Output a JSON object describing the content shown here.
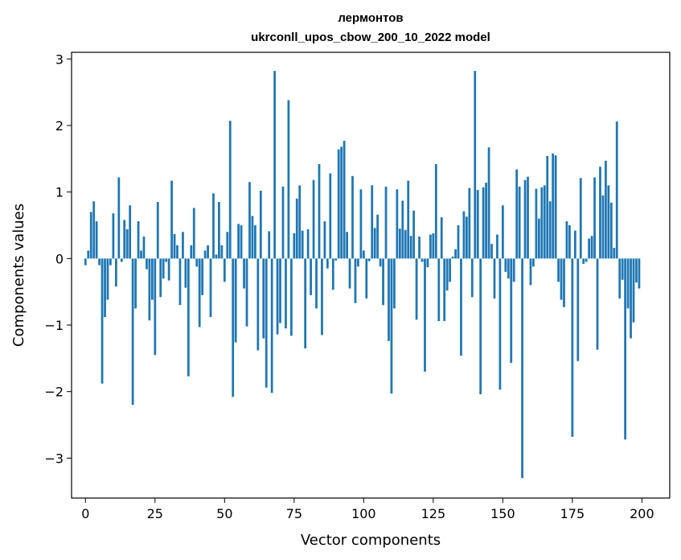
{
  "chart_data": {
    "type": "bar",
    "title": "лермонтов",
    "subtitle": "ukrconll_upos_cbow_200_10_2022 model",
    "xlabel": "Vector components",
    "ylabel": "Components values",
    "xlim": [
      -5,
      210
    ],
    "ylim": [
      -3.6,
      3.1
    ],
    "xticks": [
      0,
      25,
      50,
      75,
      100,
      125,
      150,
      175,
      200
    ],
    "xtick_labels": [
      "0",
      "25",
      "50",
      "75",
      "100",
      "125",
      "150",
      "175",
      "200"
    ],
    "yticks": [
      3,
      2,
      1,
      0,
      -1,
      -2,
      -3
    ],
    "ytick_labels": [
      "3",
      "2",
      "1",
      "0",
      "−1",
      "−2",
      "−3"
    ],
    "bar_color": "#1f77b4",
    "grid": false,
    "x": [
      0,
      1,
      2,
      3,
      4,
      5,
      6,
      7,
      8,
      9,
      10,
      11,
      12,
      13,
      14,
      15,
      16,
      17,
      18,
      19,
      20,
      21,
      22,
      23,
      24,
      25,
      26,
      27,
      28,
      29,
      30,
      31,
      32,
      33,
      34,
      35,
      36,
      37,
      38,
      39,
      40,
      41,
      42,
      43,
      44,
      45,
      46,
      47,
      48,
      49,
      50,
      51,
      52,
      53,
      54,
      55,
      56,
      57,
      58,
      59,
      60,
      61,
      62,
      63,
      64,
      65,
      66,
      67,
      68,
      69,
      70,
      71,
      72,
      73,
      74,
      75,
      76,
      77,
      78,
      79,
      80,
      81,
      82,
      83,
      84,
      85,
      86,
      87,
      88,
      89,
      90,
      91,
      92,
      93,
      94,
      95,
      96,
      97,
      98,
      99,
      100,
      101,
      102,
      103,
      104,
      105,
      106,
      107,
      108,
      109,
      110,
      111,
      112,
      113,
      114,
      115,
      116,
      117,
      118,
      119,
      120,
      121,
      122,
      123,
      124,
      125,
      126,
      127,
      128,
      129,
      130,
      131,
      132,
      133,
      134,
      135,
      136,
      137,
      138,
      139,
      140,
      141,
      142,
      143,
      144,
      145,
      146,
      147,
      148,
      149,
      150,
      151,
      152,
      153,
      154,
      155,
      156,
      157,
      158,
      159,
      160,
      161,
      162,
      163,
      164,
      165,
      166,
      167,
      168,
      169,
      170,
      171,
      172,
      173,
      174,
      175,
      176,
      177,
      178,
      179,
      180,
      181,
      182,
      183,
      184,
      185,
      186,
      187,
      188,
      189,
      190,
      191,
      192,
      193,
      194,
      195,
      196,
      197,
      198,
      199
    ],
    "values": [
      -0.1,
      0.12,
      0.7,
      0.86,
      0.56,
      -0.1,
      -1.88,
      -0.88,
      -0.62,
      -0.1,
      0.68,
      -0.42,
      1.22,
      -0.05,
      0.58,
      0.44,
      0.8,
      -2.2,
      -0.75,
      0.56,
      0.12,
      0.33,
      -0.16,
      -0.93,
      -0.62,
      -1.45,
      0.85,
      -0.58,
      -0.3,
      -0.05,
      -0.33,
      1.17,
      0.37,
      0.2,
      -0.7,
      0.4,
      -0.44,
      -1.77,
      0.2,
      0.76,
      -0.12,
      -1.03,
      -0.55,
      0.12,
      0.2,
      -0.88,
      0.98,
      0.06,
      0.85,
      0.2,
      -0.35,
      0.4,
      2.07,
      -2.08,
      -1.26,
      0.52,
      0.5,
      -0.45,
      -1.02,
      1.15,
      0.64,
      0.5,
      -1.38,
      1.02,
      -1.2,
      -1.94,
      0.41,
      -2.02,
      2.82,
      -1.14,
      -0.97,
      1.08,
      -1.05,
      2.38,
      -1.16,
      0.38,
      0.9,
      1.1,
      0.42,
      -1.35,
      0.44,
      -0.55,
      1.18,
      -0.75,
      1.42,
      -1.15,
      0.56,
      -0.15,
      1.28,
      -0.47,
      -0.03,
      1.64,
      1.68,
      1.77,
      0.4,
      -0.45,
      1.24,
      -0.67,
      -0.12,
      1.04,
      0.12,
      -0.6,
      -0.04,
      1.1,
      0.46,
      0.66,
      -0.12,
      -0.7,
      1.08,
      -1.24,
      -2.03,
      -0.75,
      1.04,
      0.45,
      0.87,
      0.43,
      1.17,
      0.34,
      0.72,
      -0.92,
      0.33,
      -0.05,
      -1.7,
      -0.13,
      0.36,
      0.38,
      1.42,
      -0.94,
      0.62,
      -0.94,
      -0.48,
      -0.35,
      0.03,
      0.14,
      0.5,
      -1.46,
      0.71,
      0.63,
      1.06,
      -0.58,
      2.82,
      1.03,
      -2.04,
      1.07,
      1.14,
      1.67,
      0.22,
      -0.6,
      0.36,
      -1.97,
      0.8,
      -0.2,
      -0.3,
      -1.57,
      -0.35,
      1.34,
      1.08,
      -3.3,
      1.18,
      1.23,
      -0.4,
      -0.12,
      1.05,
      0.6,
      1.07,
      1.1,
      1.54,
      0.86,
      1.58,
      1.55,
      -0.35,
      -0.62,
      -0.73,
      0.56,
      0.5,
      -2.68,
      0.42,
      -1.54,
      1.21,
      -0.08,
      -0.05,
      0.3,
      0.34,
      1.22,
      -1.37,
      1.38,
      0.95,
      1.47,
      1.1,
      0.84,
      0.16,
      2.06,
      -0.6,
      -0.32,
      -2.72,
      -0.75,
      -1.2,
      -0.96,
      -0.36,
      -0.45
    ]
  }
}
